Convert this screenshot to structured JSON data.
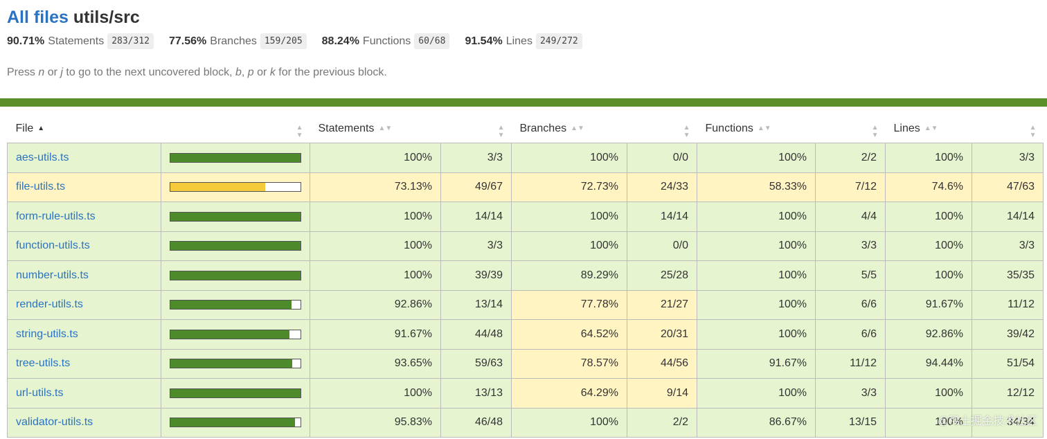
{
  "header": {
    "all_files": "All files",
    "path": "utils/src"
  },
  "summary": [
    {
      "pct": "90.71%",
      "label": "Statements",
      "frac": "283/312"
    },
    {
      "pct": "77.56%",
      "label": "Branches",
      "frac": "159/205"
    },
    {
      "pct": "88.24%",
      "label": "Functions",
      "frac": "60/68"
    },
    {
      "pct": "91.54%",
      "label": "Lines",
      "frac": "249/272"
    }
  ],
  "hint": {
    "t1": "Press ",
    "n": "n",
    "t2": " or ",
    "j": "j",
    "t3": " to go to the next uncovered block, ",
    "b": "b",
    "t4": ", ",
    "p": "p",
    "t5": " or ",
    "k": "k",
    "t6": " for the previous block."
  },
  "columns": {
    "file": "File",
    "statements": "Statements",
    "branches": "Branches",
    "functions": "Functions",
    "lines": "Lines"
  },
  "colors": {
    "high_bg": "#e6f5d0",
    "medium_bg": "#fff4c2",
    "high_bar": "#4d8a2a",
    "medium_bar": "#f5ca3b",
    "accent": "#5a8f29",
    "link": "#2a73c4"
  },
  "rows": [
    {
      "file": "aes-utils.ts",
      "coverage": 100,
      "level": "high",
      "stmt_pct": "100%",
      "stmt": "3/3",
      "br_pct": "100%",
      "br": "0/0",
      "br_level": "high",
      "fn_pct": "100%",
      "fn": "2/2",
      "ln_pct": "100%",
      "ln": "3/3"
    },
    {
      "file": "file-utils.ts",
      "coverage": 73.13,
      "level": "medium",
      "stmt_pct": "73.13%",
      "stmt": "49/67",
      "br_pct": "72.73%",
      "br": "24/33",
      "br_level": "medium",
      "fn_pct": "58.33%",
      "fn": "7/12",
      "ln_pct": "74.6%",
      "ln": "47/63"
    },
    {
      "file": "form-rule-utils.ts",
      "coverage": 100,
      "level": "high",
      "stmt_pct": "100%",
      "stmt": "14/14",
      "br_pct": "100%",
      "br": "14/14",
      "br_level": "high",
      "fn_pct": "100%",
      "fn": "4/4",
      "ln_pct": "100%",
      "ln": "14/14"
    },
    {
      "file": "function-utils.ts",
      "coverage": 100,
      "level": "high",
      "stmt_pct": "100%",
      "stmt": "3/3",
      "br_pct": "100%",
      "br": "0/0",
      "br_level": "high",
      "fn_pct": "100%",
      "fn": "3/3",
      "ln_pct": "100%",
      "ln": "3/3"
    },
    {
      "file": "number-utils.ts",
      "coverage": 100,
      "level": "high",
      "stmt_pct": "100%",
      "stmt": "39/39",
      "br_pct": "89.29%",
      "br": "25/28",
      "br_level": "high",
      "fn_pct": "100%",
      "fn": "5/5",
      "ln_pct": "100%",
      "ln": "35/35"
    },
    {
      "file": "render-utils.ts",
      "coverage": 92.86,
      "level": "high",
      "stmt_pct": "92.86%",
      "stmt": "13/14",
      "br_pct": "77.78%",
      "br": "21/27",
      "br_level": "medium",
      "fn_pct": "100%",
      "fn": "6/6",
      "ln_pct": "91.67%",
      "ln": "11/12"
    },
    {
      "file": "string-utils.ts",
      "coverage": 91.67,
      "level": "high",
      "stmt_pct": "91.67%",
      "stmt": "44/48",
      "br_pct": "64.52%",
      "br": "20/31",
      "br_level": "medium",
      "fn_pct": "100%",
      "fn": "6/6",
      "ln_pct": "92.86%",
      "ln": "39/42"
    },
    {
      "file": "tree-utils.ts",
      "coverage": 93.65,
      "level": "high",
      "stmt_pct": "93.65%",
      "stmt": "59/63",
      "br_pct": "78.57%",
      "br": "44/56",
      "br_level": "medium",
      "fn_pct": "91.67%",
      "fn": "11/12",
      "ln_pct": "94.44%",
      "ln": "51/54"
    },
    {
      "file": "url-utils.ts",
      "coverage": 100,
      "level": "high",
      "stmt_pct": "100%",
      "stmt": "13/13",
      "br_pct": "64.29%",
      "br": "9/14",
      "br_level": "medium",
      "fn_pct": "100%",
      "fn": "3/3",
      "ln_pct": "100%",
      "ln": "12/12"
    },
    {
      "file": "validator-utils.ts",
      "coverage": 95.83,
      "level": "high",
      "stmt_pct": "95.83%",
      "stmt": "46/48",
      "br_pct": "100%",
      "br": "2/2",
      "br_level": "high",
      "fn_pct": "86.67%",
      "fn": "13/15",
      "ln_pct": "100%",
      "ln": "34/34"
    }
  ],
  "watermark": "@稀土掘金技术社区"
}
